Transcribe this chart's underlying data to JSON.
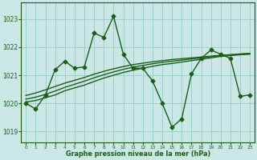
{
  "x": [
    0,
    1,
    2,
    3,
    4,
    5,
    6,
    7,
    8,
    9,
    10,
    11,
    12,
    13,
    14,
    15,
    16,
    17,
    18,
    19,
    20,
    21,
    22,
    23
  ],
  "y_main": [
    1020.0,
    1019.8,
    1020.3,
    1021.2,
    1021.5,
    1021.25,
    1021.3,
    1022.5,
    1022.35,
    1023.1,
    1021.75,
    1021.25,
    1021.25,
    1020.8,
    1020.0,
    1019.15,
    1019.45,
    1021.05,
    1021.6,
    1021.9,
    1021.75,
    1021.6,
    1020.25,
    1020.3
  ],
  "y_smooth1": [
    1020.05,
    1020.1,
    1020.2,
    1020.3,
    1020.45,
    1020.55,
    1020.65,
    1020.78,
    1020.9,
    1021.0,
    1021.1,
    1021.18,
    1021.25,
    1021.32,
    1021.38,
    1021.42,
    1021.47,
    1021.52,
    1021.57,
    1021.62,
    1021.67,
    1021.7,
    1021.73,
    1021.75
  ],
  "y_smooth2": [
    1020.15,
    1020.22,
    1020.32,
    1020.44,
    1020.57,
    1020.68,
    1020.79,
    1020.91,
    1021.02,
    1021.12,
    1021.21,
    1021.29,
    1021.35,
    1021.41,
    1021.46,
    1021.5,
    1021.54,
    1021.58,
    1021.62,
    1021.66,
    1021.7,
    1021.73,
    1021.76,
    1021.78
  ],
  "y_smooth3": [
    1020.28,
    1020.37,
    1020.48,
    1020.6,
    1020.72,
    1020.82,
    1020.92,
    1021.04,
    1021.14,
    1021.23,
    1021.31,
    1021.38,
    1021.43,
    1021.48,
    1021.52,
    1021.56,
    1021.59,
    1021.62,
    1021.65,
    1021.68,
    1021.71,
    1021.73,
    1021.75,
    1021.77
  ],
  "line_color": "#1a5e1a",
  "bg_color": "#cce8e6",
  "grid_color": "#9ecfcb",
  "ylabel_ticks": [
    1019,
    1020,
    1021,
    1022,
    1023
  ],
  "xlabel": "Graphe pression niveau de la mer (hPa)",
  "xlim": [
    -0.5,
    23.5
  ],
  "ylim": [
    1018.6,
    1023.6
  ],
  "xticks": [
    0,
    1,
    2,
    3,
    4,
    5,
    6,
    7,
    8,
    9,
    10,
    11,
    12,
    13,
    14,
    15,
    16,
    17,
    18,
    19,
    20,
    21,
    22,
    23
  ],
  "marker": "D",
  "markersize": 2.5,
  "linewidth": 1.0
}
